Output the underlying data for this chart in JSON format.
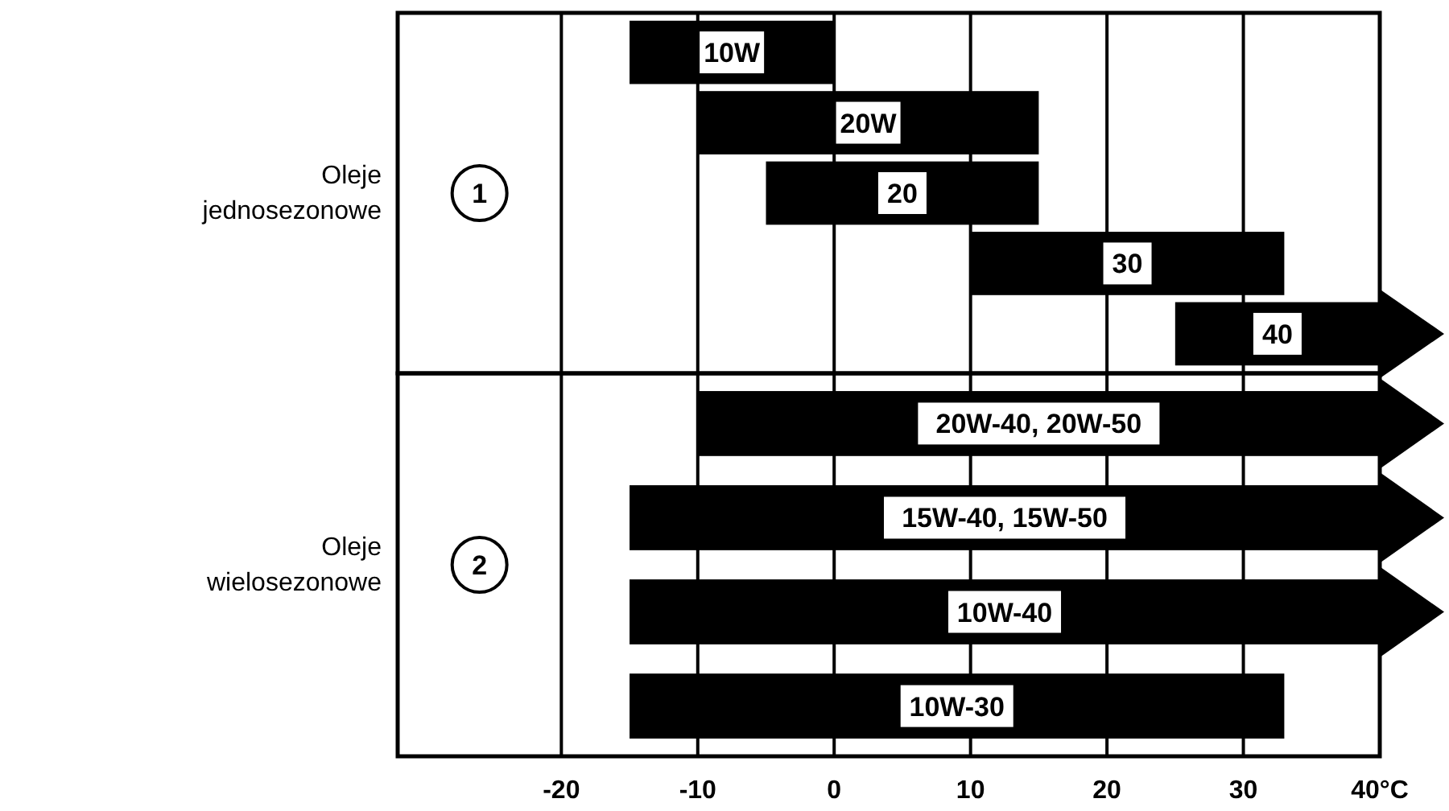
{
  "chart_data": [
    {
      "type": "bar",
      "orientation": "horizontal",
      "categories": [
        "10W",
        "20W",
        "20",
        "30",
        "40"
      ],
      "base": [
        -15,
        -10,
        -5,
        10,
        25
      ],
      "values": [
        15,
        25,
        20,
        23,
        15
      ],
      "color": "#000000",
      "xlim": [
        -32,
        40
      ],
      "xticks": [
        -20,
        -10,
        0,
        10,
        20,
        30,
        40
      ],
      "grid": "x",
      "tick_labels": "y",
      "annotations": [
        "Oleje\njednosezonowe",
        "1"
      ]
    },
    {
      "type": "bar",
      "orientation": "horizontal",
      "categories": [
        "20W-40, 20W-50",
        "15W-40, 15W-50",
        "10W-40",
        "10W-30"
      ],
      "base": [
        -10,
        -15,
        -15,
        -15
      ],
      "values": [
        50,
        55,
        55,
        48
      ],
      "color": "#000000",
      "xlim": [
        -32,
        40
      ],
      "xticks": [
        -20,
        -10,
        0,
        10,
        20,
        30,
        {
          "value": 40,
          "label": "40°C"
        }
      ],
      "grid": "x",
      "annotations": [
        "Oleje\nwielosezonowe",
        "2"
      ]
    }
  ]
}
